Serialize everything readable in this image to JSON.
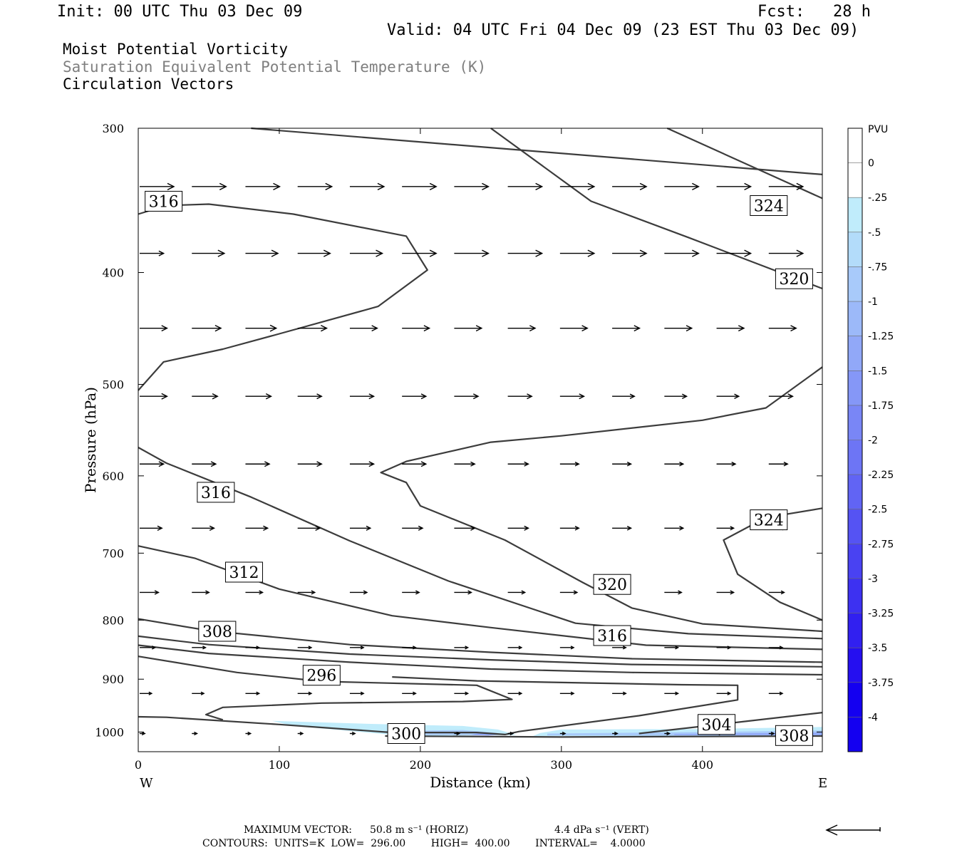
{
  "header": {
    "init": "Init: 00 UTC Thu 03 Dec 09",
    "fcst": "Fcst:   28 h",
    "valid": "Valid: 04 UTC Fri 04 Dec 09 (23 EST Thu 03 Dec 09)",
    "field1": "Moist Potential Vorticity",
    "field2": "Saturation Equivalent Potential Temperature (K)",
    "field3": "Circulation Vectors"
  },
  "footer": {
    "max_vector_label": "MAXIMUM VECTOR:",
    "horiz": "50.8 m s⁻¹ (HORIZ)",
    "vert": "4.4 dPa s⁻¹ (VERT)",
    "contours": "CONTOURS:  UNITS=K  LOW=  296.00        HIGH=  400.00        INTERVAL=    4.0000"
  },
  "colors": {
    "contour": "#3c3c3c",
    "vector": "#000000",
    "pv_shading": [
      "#ffffff",
      "#ffffff",
      "#c0ecfb",
      "#b3dcfa",
      "#a8cafa",
      "#9cb9f9",
      "#91a8f8",
      "#8597f7",
      "#7986f6",
      "#6d75f5",
      "#6164f4",
      "#5553f3",
      "#4942f2",
      "#3d31f1",
      "#3120f0",
      "#250ff0",
      "#1400f0"
    ]
  },
  "chart_data": {
    "type": "cross-section",
    "xlabel": "Distance (km)",
    "ylabel": "Pressure (hPa)",
    "xlim": [
      0,
      485
    ],
    "ylim": [
      1040,
      300
    ],
    "y_scale": "log",
    "x_ticks": [
      "0",
      "100",
      "200",
      "300",
      "400"
    ],
    "x_tick_values": [
      0,
      100,
      200,
      300,
      400
    ],
    "y_ticks": [
      "300",
      "400",
      "500",
      "600",
      "700",
      "800",
      "900",
      "1000"
    ],
    "y_tick_values": [
      300,
      400,
      500,
      600,
      700,
      800,
      900,
      1000
    ],
    "x_end_labels": {
      "left": "W",
      "right": "E"
    },
    "colorbar": {
      "unit": "PVU",
      "levels": [
        "0",
        "-.25",
        "-.5",
        "-.75",
        "-1",
        "-1.25",
        "-1.5",
        "-1.75",
        "-2",
        "-2.25",
        "-2.5",
        "-2.75",
        "-3",
        "-3.25",
        "-3.5",
        "-3.75",
        "-4"
      ],
      "shading_step": 2
    },
    "contour_labels": [
      {
        "text": "316",
        "x": 18,
        "p": 347
      },
      {
        "text": "324",
        "x": 447,
        "p": 350
      },
      {
        "text": "320",
        "x": 465,
        "p": 405
      },
      {
        "text": "316",
        "x": 55,
        "p": 620
      },
      {
        "text": "324",
        "x": 447,
        "p": 655
      },
      {
        "text": "312",
        "x": 75,
        "p": 727
      },
      {
        "text": "320",
        "x": 336,
        "p": 745
      },
      {
        "text": "308",
        "x": 56,
        "p": 818
      },
      {
        "text": "316",
        "x": 336,
        "p": 825
      },
      {
        "text": "296",
        "x": 130,
        "p": 893
      },
      {
        "text": "304",
        "x": 410,
        "p": 985
      },
      {
        "text": "300",
        "x": 190,
        "p": 1003
      },
      {
        "text": "308",
        "x": 465,
        "p": 1007
      }
    ],
    "contours": [
      [
        [
          80,
          300
        ],
        [
          485,
          329
        ]
      ],
      [
        [
          250,
          300
        ],
        [
          321,
          347
        ],
        [
          390,
          373
        ],
        [
          485,
          413
        ]
      ],
      [
        [
          375,
          300
        ],
        [
          485,
          345
        ]
      ],
      [
        [
          0,
          506
        ],
        [
          18,
          478
        ],
        [
          60,
          466
        ],
        [
          100,
          452
        ],
        [
          170,
          428
        ],
        [
          205,
          398
        ],
        [
          190,
          372
        ],
        [
          110,
          356
        ],
        [
          50,
          349
        ],
        [
          20,
          350
        ],
        [
          0,
          356
        ]
      ],
      [
        [
          0,
          567
        ],
        [
          20,
          585
        ],
        [
          80,
          626
        ],
        [
          150,
          683
        ],
        [
          220,
          740
        ],
        [
          310,
          805
        ],
        [
          390,
          822
        ],
        [
          485,
          830
        ]
      ],
      [
        [
          0,
          690
        ],
        [
          40,
          707
        ],
        [
          100,
          752
        ],
        [
          180,
          793
        ],
        [
          250,
          812
        ],
        [
          360,
          841
        ],
        [
          485,
          848
        ]
      ],
      [
        [
          0,
          798
        ],
        [
          50,
          817
        ],
        [
          150,
          840
        ],
        [
          250,
          853
        ],
        [
          350,
          864
        ],
        [
          485,
          870
        ]
      ],
      [
        [
          0,
          826
        ],
        [
          50,
          840
        ],
        [
          150,
          856
        ],
        [
          250,
          866
        ],
        [
          350,
          874
        ],
        [
          485,
          878
        ]
      ],
      [
        [
          0,
          841
        ],
        [
          50,
          855
        ],
        [
          150,
          870
        ],
        [
          250,
          882
        ],
        [
          350,
          888
        ],
        [
          485,
          892
        ]
      ],
      [
        [
          0,
          860
        ],
        [
          70,
          888
        ],
        [
          130,
          904
        ],
        [
          240,
          911
        ],
        [
          265,
          937
        ],
        [
          230,
          941
        ],
        [
          130,
          944
        ],
        [
          60,
          952
        ],
        [
          48,
          966
        ],
        [
          60,
          976
        ]
      ],
      [
        [
          0,
          970
        ],
        [
          20,
          971
        ],
        [
          100,
          985
        ],
        [
          180,
          1001
        ],
        [
          240,
          1001
        ],
        [
          260,
          1005
        ],
        [
          270,
          999
        ],
        [
          355,
          968
        ],
        [
          425,
          938
        ],
        [
          425,
          911
        ],
        [
          385,
          910
        ],
        [
          240,
          903
        ],
        [
          180,
          896
        ]
      ],
      [
        [
          175,
          1008
        ],
        [
          300,
          1010
        ],
        [
          485,
          1008
        ]
      ],
      [
        [
          355,
          1003
        ],
        [
          485,
          962
        ]
      ],
      [
        [
          485,
          483
        ],
        [
          445,
          524
        ],
        [
          400,
          537
        ],
        [
          300,
          554
        ],
        [
          250,
          561
        ],
        [
          190,
          583
        ],
        [
          172,
          596
        ],
        [
          190,
          608
        ],
        [
          200,
          637
        ],
        [
          260,
          682
        ],
        [
          315,
          742
        ],
        [
          350,
          781
        ],
        [
          400,
          806
        ],
        [
          485,
          818
        ]
      ],
      [
        [
          485,
          640
        ],
        [
          445,
          652
        ],
        [
          415,
          682
        ],
        [
          425,
          730
        ],
        [
          455,
          772
        ],
        [
          485,
          800
        ]
      ]
    ],
    "shaded_regions": [
      {
        "level_index": 2,
        "points": [
          [
            95,
            978
          ],
          [
            165,
            984
          ],
          [
            230,
            988
          ],
          [
            255,
            995
          ],
          [
            268,
            1006
          ],
          [
            190,
            1008
          ],
          [
            110,
            988
          ]
        ]
      },
      {
        "level_index": 2,
        "points": [
          [
            285,
            1002
          ],
          [
            300,
            995
          ],
          [
            400,
            994
          ],
          [
            485,
            990
          ],
          [
            485,
            1008
          ],
          [
            280,
            1008
          ]
        ]
      },
      {
        "level_index": 4,
        "points": [
          [
            175,
            998
          ],
          [
            230,
            996
          ],
          [
            255,
            1002
          ],
          [
            245,
            1006
          ],
          [
            180,
            1006
          ]
        ]
      },
      {
        "level_index": 4,
        "points": [
          [
            290,
            1003
          ],
          [
            400,
            1000
          ],
          [
            485,
            997
          ],
          [
            485,
            1007
          ],
          [
            290,
            1007
          ]
        ]
      },
      {
        "level_index": 6,
        "points": [
          [
            240,
            1003
          ],
          [
            258,
            1005
          ],
          [
            248,
            1007
          ],
          [
            236,
            1006
          ]
        ]
      },
      {
        "level_index": 6,
        "points": [
          [
            380,
            1004
          ],
          [
            485,
            1001
          ],
          [
            485,
            1006
          ],
          [
            380,
            1006
          ]
        ]
      }
    ],
    "vector_rows": [
      {
        "p": 337,
        "x": [
          0,
          37,
          75,
          112,
          149,
          186,
          223,
          261,
          298,
          335,
          372,
          409,
          446
        ],
        "u": [
          1,
          1,
          1,
          1,
          1,
          1,
          1,
          1,
          1,
          1,
          1,
          1,
          1
        ]
      },
      {
        "p": 385,
        "x": [
          0,
          37,
          75,
          112,
          149,
          186,
          223,
          261,
          298,
          335,
          372,
          409,
          446
        ],
        "u": [
          0.7,
          0.95,
          0.95,
          0.95,
          0.95,
          1,
          1,
          1,
          1,
          1,
          1,
          1,
          1
        ]
      },
      {
        "p": 447,
        "x": [
          0,
          37,
          75,
          112,
          149,
          186,
          223,
          261,
          298,
          335,
          372,
          409,
          446
        ],
        "u": [
          0.8,
          0.85,
          0.9,
          0.85,
          0.8,
          0.8,
          0.8,
          0.8,
          0.8,
          0.8,
          0.8,
          0.8,
          0.8
        ]
      },
      {
        "p": 512,
        "x": [
          0,
          37,
          75,
          112,
          149,
          186,
          223,
          261,
          298,
          335,
          372,
          409,
          446
        ],
        "u": [
          0.8,
          0.75,
          0.75,
          0.7,
          0.7,
          0.7,
          0.7,
          0.7,
          0.7,
          0.65,
          0.65,
          0.65,
          0.7
        ]
      },
      {
        "p": 586,
        "x": [
          0,
          37,
          75,
          112,
          149,
          186,
          223,
          261,
          298,
          335,
          372,
          409,
          446
        ],
        "u": [
          0.7,
          0.7,
          0.7,
          0.7,
          0.7,
          0.7,
          0.6,
          0.6,
          0.55,
          0.55,
          0.55,
          0.55,
          0.55
        ]
      },
      {
        "p": 666,
        "x": [
          0,
          37,
          75,
          112,
          149,
          186,
          223,
          261,
          298,
          335,
          372,
          409,
          446
        ],
        "u": [
          0.65,
          0.65,
          0.65,
          0.65,
          0.6,
          0.6,
          0.6,
          0.6,
          0.55,
          0.55,
          0.55,
          0.5,
          0.5
        ]
      },
      {
        "p": 757,
        "x": [
          0,
          37,
          75,
          112,
          149,
          186,
          223,
          261,
          298,
          335,
          372,
          409,
          446
        ],
        "u": [
          0.55,
          0.5,
          0.5,
          0.5,
          0.5,
          0.5,
          0.5,
          0.5,
          0.5,
          0.5,
          0.5,
          0.5,
          0.45
        ]
      },
      {
        "p": 845,
        "x": [
          0,
          37,
          75,
          112,
          149,
          186,
          223,
          261,
          298,
          335,
          372,
          409,
          446
        ],
        "u": [
          0.45,
          0.4,
          0.4,
          0.4,
          0.4,
          0.4,
          0.4,
          0.4,
          0.4,
          0.4,
          0.4,
          0.4,
          0.4
        ]
      },
      {
        "p": 926,
        "x": [
          0,
          37,
          75,
          112,
          149,
          186,
          223,
          261,
          298,
          335,
          372,
          409,
          446
        ],
        "u": [
          0.35,
          0.35,
          0.4,
          0.4,
          0.4,
          0.4,
          0.4,
          0.4,
          0.4,
          0.4,
          0.4,
          0.4,
          0.4
        ]
      },
      {
        "p": 1003,
        "x": [
          0,
          37,
          75,
          112,
          149,
          186,
          223,
          261,
          298,
          335,
          372,
          409,
          446
        ],
        "u": [
          0.15,
          0.15,
          0.15,
          0.15,
          0.15,
          0.15,
          0.15,
          0.15,
          0.15,
          0.15,
          0.15,
          0.15,
          0.15
        ]
      }
    ]
  }
}
